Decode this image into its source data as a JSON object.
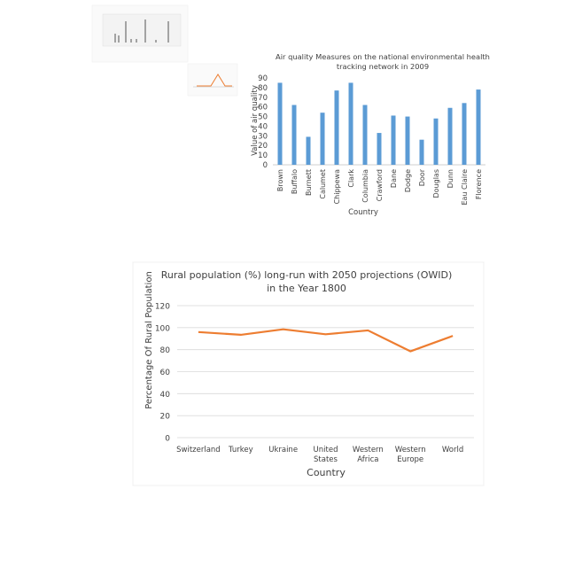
{
  "chart_data": [
    {
      "type": "bar",
      "title": "Air quality Measures on the national environmental health tracking network in 2009",
      "xlabel": "Country",
      "ylabel": "Value of air quality",
      "ylim": [
        0,
        90
      ],
      "yticks": [
        0,
        10,
        20,
        30,
        40,
        50,
        60,
        70,
        80,
        90
      ],
      "categories": [
        "Brown",
        "Buffalo",
        "Burnett",
        "Calumet",
        "Chippewa",
        "Clark",
        "Columbia",
        "Crawford",
        "Dane",
        "Dodge",
        "Door",
        "Douglas",
        "Dunn",
        "Eau Claire",
        "Florence"
      ],
      "values": [
        85,
        62,
        29,
        54,
        77,
        85,
        62,
        33,
        51,
        50,
        26,
        48,
        59,
        64,
        78
      ],
      "color": "#5b9bd5",
      "grid": false
    },
    {
      "type": "line",
      "title_line1": "Rural population (%) long-run with 2050 projections (OWID)",
      "title_line2": "in the Year 1800",
      "xlabel": "Country",
      "ylabel": "Percentage Of Rural Population",
      "ylim": [
        0,
        120
      ],
      "yticks": [
        0,
        20,
        40,
        60,
        80,
        100,
        120
      ],
      "categories": [
        [
          "Switzerland"
        ],
        [
          "Turkey"
        ],
        [
          "Ukraine"
        ],
        [
          "United",
          "States"
        ],
        [
          "Western",
          "Africa"
        ],
        [
          "Western",
          "Europe"
        ],
        [
          "World"
        ]
      ],
      "values": [
        96,
        93.5,
        98.5,
        94,
        97.5,
        78.5,
        92.5
      ],
      "color": "#ed7d31",
      "grid": true
    }
  ]
}
